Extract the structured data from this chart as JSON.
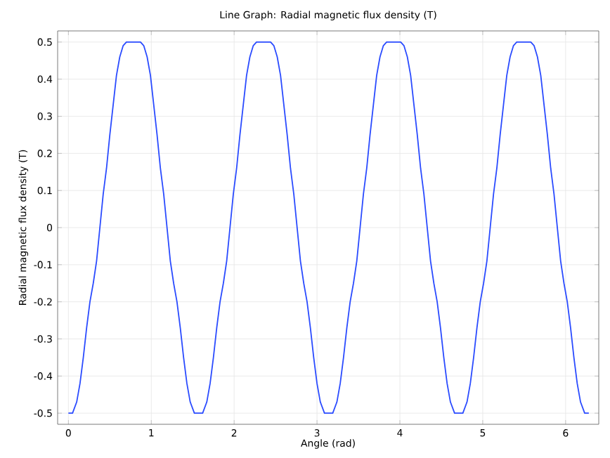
{
  "chart_data": {
    "type": "line",
    "title": "Line Graph: Radial magnetic flux density (T)",
    "xlabel": "Angle (rad)",
    "ylabel": "Radial magnetic flux density (T)",
    "xlim": [
      -0.13,
      6.4
    ],
    "ylim": [
      -0.53,
      0.53
    ],
    "xticks": [
      0,
      1,
      2,
      3,
      4,
      5,
      6
    ],
    "yticks": [
      -0.5,
      -0.4,
      -0.3,
      -0.2,
      -0.1,
      0,
      0.1,
      0.2,
      0.3,
      0.4,
      0.5
    ],
    "grid": true,
    "marker": "none",
    "line_style": "solid",
    "series": [
      {
        "color": "#2a4bff",
        "x": [
          0,
          0.05,
          0.1,
          0.14,
          0.18,
          0.22,
          0.26,
          0.3,
          0.34,
          0.38,
          0.42,
          0.46,
          0.5,
          0.54,
          0.58,
          0.62,
          0.66,
          0.7,
          0.87,
          0.91,
          0.95,
          0.99,
          1.03,
          1.07,
          1.11,
          1.15,
          1.19,
          1.23,
          1.27,
          1.31,
          1.35,
          1.39,
          1.43,
          1.47,
          1.52,
          1.57,
          1.62,
          1.67,
          1.71,
          1.75,
          1.79,
          1.83,
          1.87,
          1.91,
          1.95,
          1.99,
          2.03,
          2.07,
          2.11,
          2.15,
          2.19,
          2.23,
          2.27,
          2.44,
          2.48,
          2.52,
          2.56,
          2.6,
          2.64,
          2.68,
          2.72,
          2.76,
          2.8,
          2.84,
          2.88,
          2.92,
          2.96,
          3.0,
          3.04,
          3.09,
          3.14,
          3.19,
          3.24,
          3.28,
          3.32,
          3.36,
          3.4,
          3.44,
          3.48,
          3.52,
          3.56,
          3.6,
          3.64,
          3.68,
          3.72,
          3.76,
          3.8,
          3.84,
          4.01,
          4.05,
          4.09,
          4.13,
          4.17,
          4.21,
          4.25,
          4.29,
          4.33,
          4.37,
          4.41,
          4.45,
          4.49,
          4.53,
          4.57,
          4.61,
          4.66,
          4.71,
          4.76,
          4.81,
          4.85,
          4.89,
          4.93,
          4.97,
          5.01,
          5.05,
          5.09,
          5.13,
          5.17,
          5.21,
          5.25,
          5.29,
          5.33,
          5.37,
          5.41,
          5.58,
          5.62,
          5.66,
          5.7,
          5.74,
          5.78,
          5.82,
          5.86,
          5.9,
          5.94,
          5.98,
          6.02,
          6.06,
          6.1,
          6.14,
          6.18,
          6.23,
          6.28
        ],
        "values": [
          -0.5,
          -0.5,
          -0.47,
          -0.42,
          -0.35,
          -0.27,
          -0.2,
          -0.15,
          -0.09,
          0,
          0.09,
          0.16,
          0.25,
          0.33,
          0.41,
          0.46,
          0.49,
          0.5,
          0.5,
          0.49,
          0.46,
          0.41,
          0.33,
          0.25,
          0.16,
          0.09,
          0,
          -0.09,
          -0.15,
          -0.2,
          -0.27,
          -0.35,
          -0.42,
          -0.47,
          -0.5,
          -0.5,
          -0.5,
          -0.47,
          -0.42,
          -0.35,
          -0.27,
          -0.2,
          -0.15,
          -0.09,
          0,
          0.09,
          0.16,
          0.25,
          0.33,
          0.41,
          0.46,
          0.49,
          0.5,
          0.5,
          0.49,
          0.46,
          0.41,
          0.33,
          0.25,
          0.16,
          0.09,
          0,
          -0.09,
          -0.15,
          -0.2,
          -0.27,
          -0.35,
          -0.42,
          -0.47,
          -0.5,
          -0.5,
          -0.5,
          -0.47,
          -0.42,
          -0.35,
          -0.27,
          -0.2,
          -0.15,
          -0.09,
          0,
          0.09,
          0.16,
          0.25,
          0.33,
          0.41,
          0.46,
          0.49,
          0.5,
          0.5,
          0.49,
          0.46,
          0.41,
          0.33,
          0.25,
          0.16,
          0.09,
          0,
          -0.09,
          -0.15,
          -0.2,
          -0.27,
          -0.35,
          -0.42,
          -0.47,
          -0.5,
          -0.5,
          -0.5,
          -0.47,
          -0.42,
          -0.35,
          -0.27,
          -0.2,
          -0.15,
          -0.09,
          0,
          0.09,
          0.16,
          0.25,
          0.33,
          0.41,
          0.46,
          0.49,
          0.5,
          0.5,
          0.49,
          0.46,
          0.41,
          0.33,
          0.25,
          0.16,
          0.09,
          0,
          -0.09,
          -0.15,
          -0.2,
          -0.27,
          -0.35,
          -0.42,
          -0.47,
          -0.5,
          -0.5
        ]
      }
    ]
  }
}
